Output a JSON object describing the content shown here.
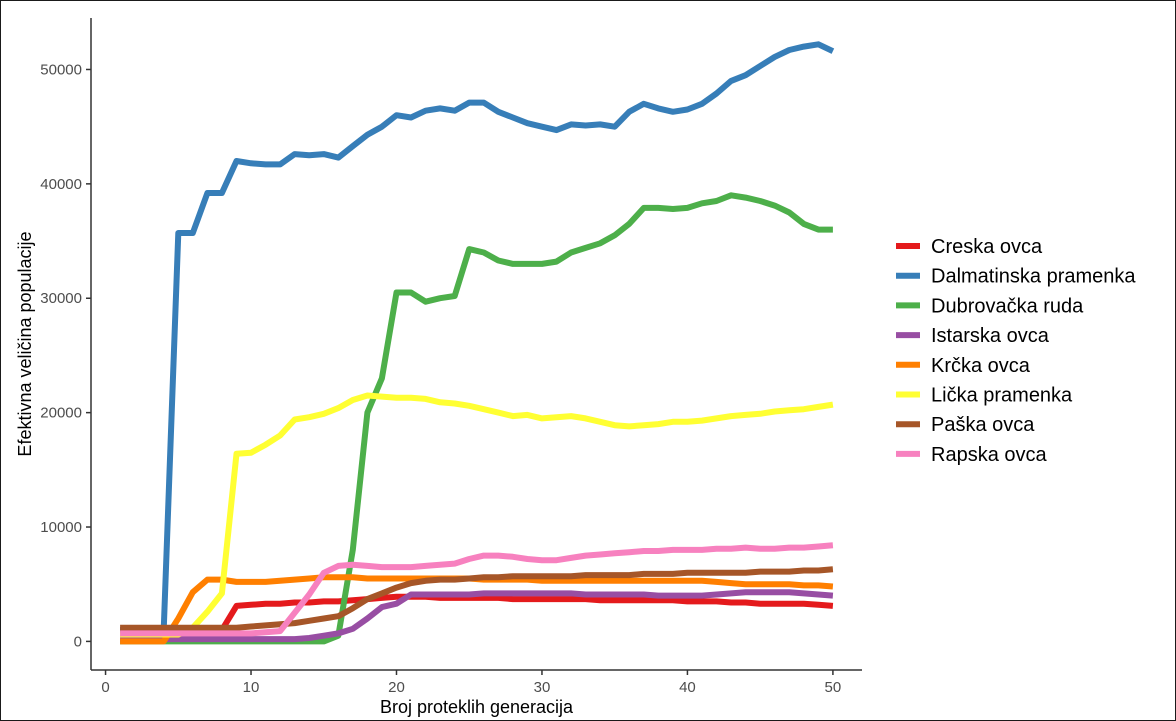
{
  "chart_data": {
    "type": "line",
    "title": "",
    "xlabel": "Broj proteklih generacija",
    "ylabel": "Efektivna veličina populacije",
    "xlim": [
      -1,
      52
    ],
    "ylim": [
      -2500,
      54500
    ],
    "x_ticks": [
      0,
      10,
      20,
      30,
      40,
      50
    ],
    "y_ticks": [
      0,
      10000,
      20000,
      30000,
      40000,
      50000
    ],
    "grid": false,
    "legend_position": "right",
    "x": [
      1,
      2,
      3,
      4,
      5,
      6,
      7,
      8,
      9,
      10,
      11,
      12,
      13,
      14,
      15,
      16,
      17,
      18,
      19,
      20,
      21,
      22,
      23,
      24,
      25,
      26,
      27,
      28,
      29,
      30,
      31,
      32,
      33,
      34,
      35,
      36,
      37,
      38,
      39,
      40,
      41,
      42,
      43,
      44,
      45,
      46,
      47,
      48,
      49,
      50
    ],
    "series": [
      {
        "name": "Creska ovca",
        "color": "#e41a1c",
        "values": [
          1000,
          1000,
          1000,
          1000,
          1000,
          1000,
          1000,
          1000,
          3100,
          3200,
          3300,
          3300,
          3400,
          3400,
          3500,
          3500,
          3600,
          3700,
          3800,
          3900,
          3900,
          3900,
          3800,
          3800,
          3800,
          3800,
          3800,
          3700,
          3700,
          3700,
          3700,
          3700,
          3700,
          3600,
          3600,
          3600,
          3600,
          3600,
          3600,
          3500,
          3500,
          3500,
          3400,
          3400,
          3300,
          3300,
          3300,
          3300,
          3200,
          3100
        ]
      },
      {
        "name": "Dalmatinska pramenka",
        "color": "#377eb8",
        "values": [
          1000,
          1000,
          1000,
          1000,
          35700,
          35700,
          39200,
          39200,
          42000,
          41800,
          41700,
          41700,
          42600,
          42500,
          42600,
          42300,
          43300,
          44300,
          45000,
          46000,
          45800,
          46400,
          46600,
          46400,
          47100,
          47100,
          46300,
          45800,
          45300,
          45000,
          44700,
          45200,
          45100,
          45200,
          45000,
          46300,
          47000,
          46600,
          46300,
          46500,
          47000,
          47900,
          49000,
          49500,
          50300,
          51100,
          51700,
          52000,
          52200,
          51600
        ]
      },
      {
        "name": "Dubrovačka ruda",
        "color": "#4daf4a",
        "values": [
          0,
          0,
          0,
          0,
          0,
          0,
          0,
          0,
          0,
          0,
          0,
          0,
          0,
          0,
          0,
          500,
          8000,
          20000,
          23000,
          30500,
          30500,
          29700,
          30000,
          30200,
          34300,
          34000,
          33300,
          33000,
          33000,
          33000,
          33200,
          34000,
          34400,
          34800,
          35500,
          36500,
          37900,
          37900,
          37800,
          37900,
          38300,
          38500,
          39000,
          38800,
          38500,
          38100,
          37500,
          36500,
          36000,
          36000
        ]
      },
      {
        "name": "Istarska ovca",
        "color": "#984ea3",
        "values": [
          200,
          200,
          200,
          200,
          200,
          200,
          200,
          200,
          200,
          200,
          200,
          200,
          200,
          300,
          500,
          700,
          1100,
          2000,
          3000,
          3300,
          4100,
          4100,
          4100,
          4100,
          4100,
          4200,
          4200,
          4200,
          4200,
          4200,
          4200,
          4200,
          4100,
          4100,
          4100,
          4100,
          4100,
          4000,
          4000,
          4000,
          4000,
          4100,
          4200,
          4300,
          4300,
          4300,
          4300,
          4200,
          4100,
          4000
        ]
      },
      {
        "name": "Krčka ovca",
        "color": "#ff7f00",
        "values": [
          0,
          0,
          0,
          0,
          2000,
          4300,
          5400,
          5400,
          5200,
          5200,
          5200,
          5300,
          5400,
          5500,
          5600,
          5600,
          5600,
          5500,
          5500,
          5500,
          5500,
          5500,
          5500,
          5500,
          5500,
          5400,
          5400,
          5400,
          5400,
          5300,
          5300,
          5300,
          5300,
          5300,
          5300,
          5300,
          5300,
          5300,
          5300,
          5300,
          5300,
          5200,
          5100,
          5000,
          5000,
          5000,
          5000,
          4900,
          4900,
          4800
        ]
      },
      {
        "name": "Lička pramenka",
        "color": "#ffff33",
        "values": [
          600,
          600,
          600,
          600,
          600,
          1200,
          2600,
          4200,
          16400,
          16500,
          17200,
          18000,
          19400,
          19600,
          19900,
          20400,
          21100,
          21500,
          21400,
          21300,
          21300,
          21200,
          20900,
          20800,
          20600,
          20300,
          20000,
          19700,
          19800,
          19500,
          19600,
          19700,
          19500,
          19200,
          18900,
          18800,
          18900,
          19000,
          19200,
          19200,
          19300,
          19500,
          19700,
          19800,
          19900,
          20100,
          20200,
          20300,
          20500,
          20700
        ]
      },
      {
        "name": "Paška ovca",
        "color": "#a65628",
        "values": [
          1200,
          1200,
          1200,
          1200,
          1200,
          1200,
          1200,
          1200,
          1200,
          1300,
          1400,
          1500,
          1600,
          1800,
          2000,
          2200,
          2900,
          3700,
          4200,
          4700,
          5100,
          5300,
          5400,
          5400,
          5500,
          5600,
          5600,
          5700,
          5700,
          5700,
          5700,
          5700,
          5800,
          5800,
          5800,
          5800,
          5900,
          5900,
          5900,
          6000,
          6000,
          6000,
          6000,
          6000,
          6100,
          6100,
          6100,
          6200,
          6200,
          6300
        ]
      },
      {
        "name": "Rapska ovca",
        "color": "#f781bf",
        "values": [
          700,
          700,
          700,
          700,
          700,
          700,
          700,
          700,
          700,
          700,
          800,
          900,
          2500,
          4100,
          6000,
          6600,
          6700,
          6600,
          6500,
          6500,
          6500,
          6600,
          6700,
          6800,
          7200,
          7500,
          7500,
          7400,
          7200,
          7100,
          7100,
          7300,
          7500,
          7600,
          7700,
          7800,
          7900,
          7900,
          8000,
          8000,
          8000,
          8100,
          8100,
          8200,
          8100,
          8100,
          8200,
          8200,
          8300,
          8400
        ]
      }
    ]
  }
}
